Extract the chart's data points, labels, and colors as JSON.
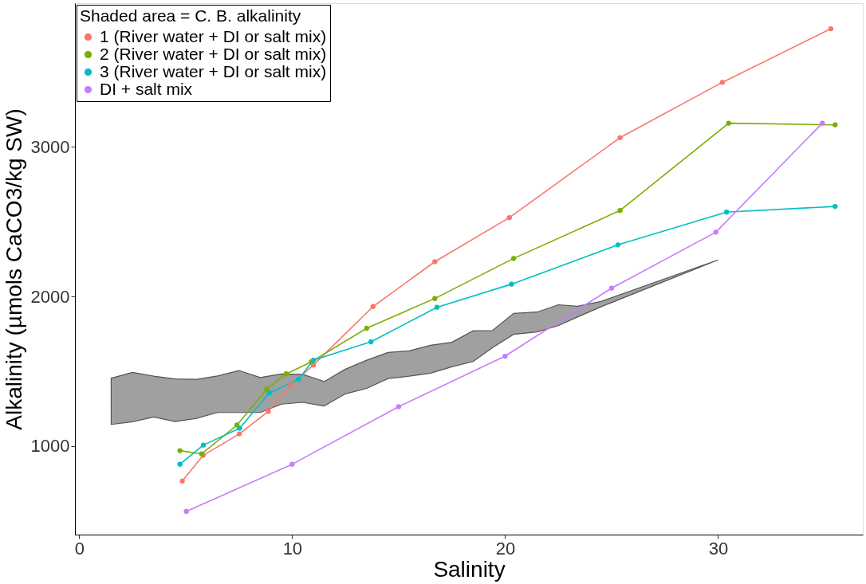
{
  "chart_data": {
    "type": "line",
    "xlabel": "Salinity",
    "ylabel": "Alkalinity (µmols CaCO3/kg SW)",
    "legend_title": "Shaded area = C. B. alkalinity",
    "legend": "top left",
    "grid": false,
    "marker": "circle",
    "line_style": "solid",
    "xlim": [
      -0.2,
      36.8
    ],
    "ylim": [
      406,
      3962
    ],
    "xticks": [
      0,
      10,
      20,
      30
    ],
    "yticks": [
      1000,
      2000,
      3000
    ],
    "series": [
      {
        "type": "area",
        "color": "#a0a0a0",
        "marker": "none",
        "x": [
          1.5,
          2.5,
          3.5,
          4.5,
          5.5,
          6.5,
          7.5,
          8.5,
          9.5,
          10.5,
          11.5,
          12.5,
          13.5,
          14.5,
          15.5,
          16.5,
          17.5,
          18.5,
          19.4,
          20.4,
          21.5,
          22.5,
          23.4,
          24.5,
          30.0
        ],
        "values": [
          null,
          null,
          null,
          null,
          null,
          null,
          null,
          null,
          null,
          null,
          null,
          null,
          null,
          null,
          null,
          null,
          null,
          null,
          null,
          null,
          null,
          null,
          null,
          null,
          null
        ],
        "upper": [
          1452,
          1491,
          1466,
          1448,
          1445,
          1468,
          1504,
          1457,
          1481,
          1478,
          1430,
          1513,
          1573,
          1625,
          1636,
          1673,
          1693,
          1770,
          1771,
          1886,
          1895,
          1944,
          1934,
          1966,
          2244
        ],
        "lower": [
          1143,
          1161,
          1193,
          1162,
          1184,
          1223,
          1223,
          1223,
          1279,
          1291,
          1266,
          1348,
          1384,
          1450,
          1466,
          1486,
          1529,
          1564,
          1656,
          1746,
          1762,
          1804,
          1862,
          1930,
          2244
        ]
      },
      {
        "name": "1 (River water + DI or salt mix)",
        "color": "#f8766d",
        "x": [
          4.84,
          5.82,
          7.52,
          8.88,
          9.94,
          11.0,
          13.8,
          16.7,
          20.2,
          25.4,
          30.2,
          35.3
        ],
        "values": [
          764,
          936,
          1080,
          1230,
          1407,
          1541,
          1932,
          2232,
          2527,
          3062,
          3432,
          3791
        ]
      },
      {
        "name": "2 (River water + DI or salt mix)",
        "color": "#7cae00",
        "x": [
          4.73,
          5.75,
          7.41,
          8.81,
          9.72,
          10.9,
          13.5,
          16.7,
          20.4,
          25.4,
          30.5,
          35.5
        ],
        "values": [
          968,
          946,
          1139,
          1380,
          1482,
          1562,
          1787,
          1986,
          2254,
          2575,
          3159,
          3148
        ]
      },
      {
        "name": "3 (River water + DI or salt mix)",
        "color": "#00bfc4",
        "x": [
          4.73,
          5.83,
          7.53,
          8.93,
          10.3,
          11.0,
          13.7,
          16.8,
          20.3,
          25.3,
          30.4,
          35.5
        ],
        "values": [
          877,
          1005,
          1118,
          1354,
          1445,
          1573,
          1696,
          1927,
          2082,
          2345,
          2564,
          2602
        ]
      },
      {
        "name": "DI + salt mix",
        "color": "#c77cff",
        "x": [
          5.03,
          10.0,
          15.0,
          20.0,
          25.0,
          29.9,
          34.9
        ],
        "values": [
          561,
          877,
          1262,
          1600,
          2055,
          2430,
          3159
        ]
      }
    ]
  }
}
